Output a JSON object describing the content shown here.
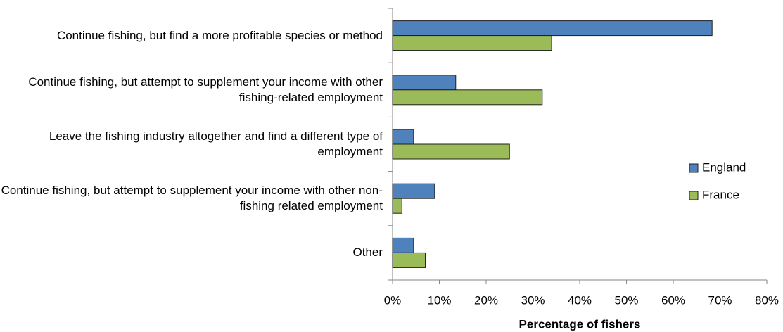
{
  "chart_data": {
    "type": "bar",
    "orientation": "horizontal",
    "categories": [
      "Continue fishing, but find a more profitable species or method",
      "Continue fishing, but attempt to supplement your income with other fishing-related employment",
      "Leave the fishing industry altogether and find a different type of employment",
      "Continue fishing, but attempt to supplement your income with other non-fishing related employment",
      "Other"
    ],
    "series": [
      {
        "name": "England",
        "color": "#4f81bd",
        "values": [
          68.3,
          13.5,
          4.5,
          9,
          4.5
        ]
      },
      {
        "name": "France",
        "color": "#9bbb59",
        "values": [
          34,
          32,
          25,
          2,
          7
        ]
      }
    ],
    "xlabel": "Percentage of fishers",
    "xlim": [
      0,
      80
    ],
    "xticks": [
      {
        "value": 0,
        "label": "0%"
      },
      {
        "value": 10,
        "label": "10%"
      },
      {
        "value": 20,
        "label": "20%"
      },
      {
        "value": 30,
        "label": "30%"
      },
      {
        "value": 40,
        "label": "40%"
      },
      {
        "value": 50,
        "label": "50%"
      },
      {
        "value": 60,
        "label": "60%"
      },
      {
        "value": 70,
        "label": "70%"
      },
      {
        "value": 80,
        "label": "80%"
      }
    ],
    "grid": false,
    "legend": "right"
  }
}
